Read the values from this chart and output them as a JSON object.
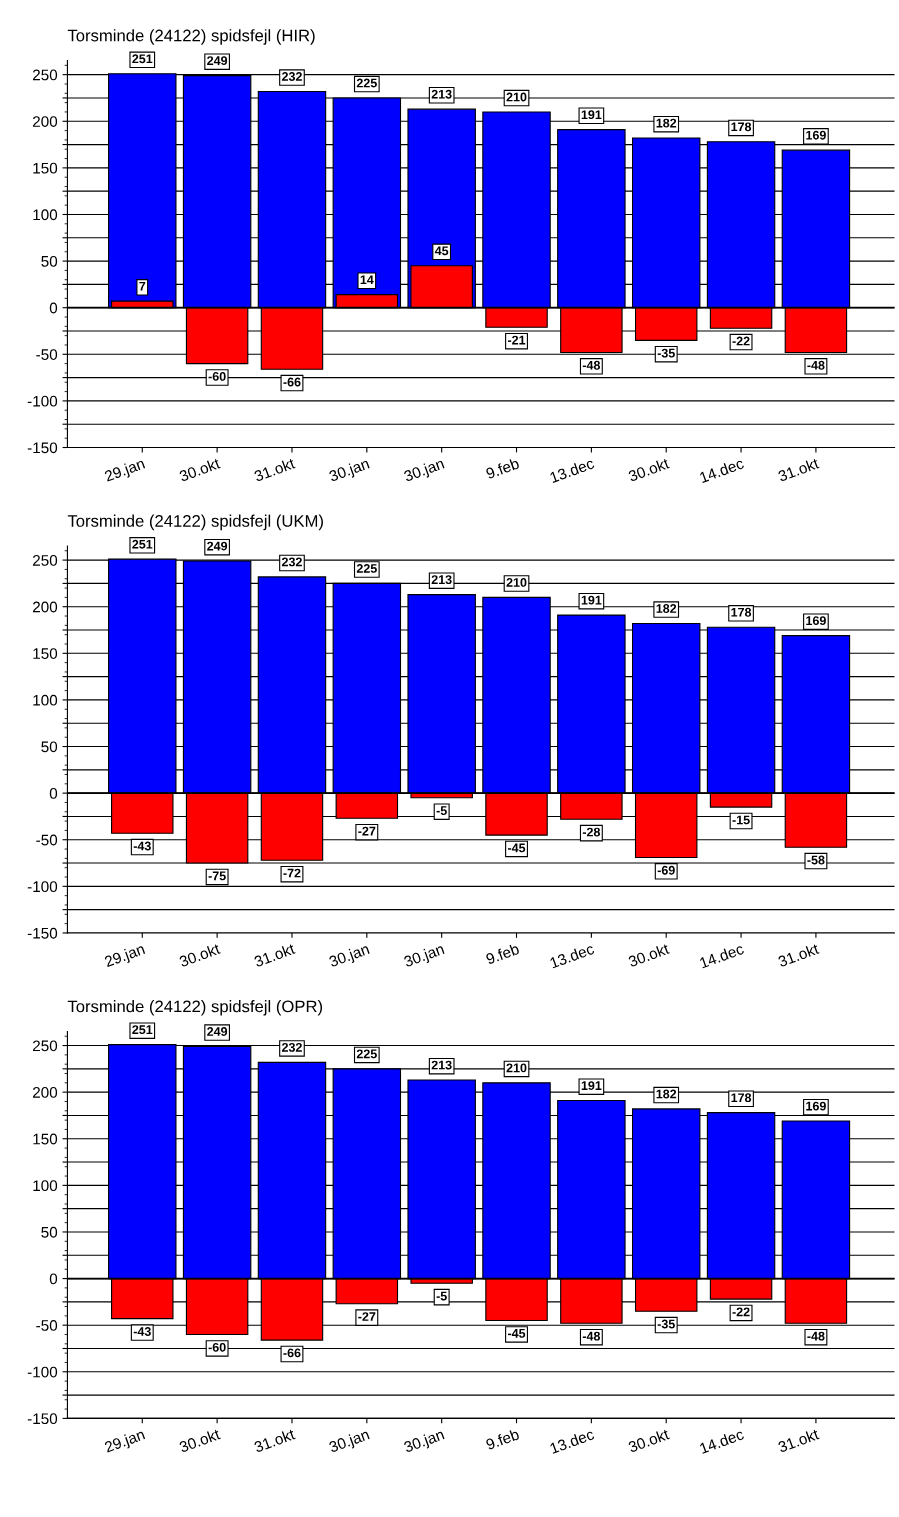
{
  "chart_data": [
    {
      "type": "bar",
      "title": "Torsminde (24122) spidsfejl (HIR)",
      "categories": [
        "29.jan",
        "30.okt",
        "31.okt",
        "30.jan",
        "30.jan",
        "9.feb",
        "13.dec",
        "30.okt",
        "14.dec",
        "31.okt"
      ],
      "series": [
        {
          "color": "#0000ff",
          "values": [
            251,
            249,
            232,
            225,
            213,
            210,
            191,
            182,
            178,
            169
          ]
        },
        {
          "color": "#ff0000",
          "values": [
            7,
            -60,
            -66,
            14,
            45,
            -21,
            -48,
            -35,
            -22,
            -48
          ]
        }
      ],
      "ylim": [
        -150,
        265
      ],
      "yticks": [
        -150,
        {
          "value": -125,
          "label": null
        },
        -100,
        {
          "value": -75,
          "label": null
        },
        -50,
        {
          "value": -25,
          "label": null
        },
        0,
        {
          "value": 25,
          "label": null
        },
        50,
        {
          "value": 75,
          "label": null
        },
        100,
        {
          "value": 125,
          "label": null
        },
        150,
        {
          "value": 175,
          "label": null
        },
        200,
        {
          "value": 225,
          "label": null
        },
        250
      ],
      "grid": "y",
      "data_labels": true,
      "legend": false
    },
    {
      "type": "bar",
      "title": "Torsminde (24122) spidsfejl (UKM)",
      "categories": [
        "29.jan",
        "30.okt",
        "31.okt",
        "30.jan",
        "30.jan",
        "9.feb",
        "13.dec",
        "30.okt",
        "14.dec",
        "31.okt"
      ],
      "series": [
        {
          "color": "#0000ff",
          "values": [
            251,
            249,
            232,
            225,
            213,
            210,
            191,
            182,
            178,
            169
          ]
        },
        {
          "color": "#ff0000",
          "values": [
            -43,
            -75,
            -72,
            -27,
            -5,
            -45,
            -28,
            -69,
            -15,
            -58
          ]
        }
      ],
      "ylim": [
        -150,
        265
      ],
      "yticks": [
        -150,
        {
          "value": -125,
          "label": null
        },
        -100,
        {
          "value": -75,
          "label": null
        },
        -50,
        {
          "value": -25,
          "label": null
        },
        0,
        {
          "value": 25,
          "label": null
        },
        50,
        {
          "value": 75,
          "label": null
        },
        100,
        {
          "value": 125,
          "label": null
        },
        150,
        {
          "value": 175,
          "label": null
        },
        200,
        {
          "value": 225,
          "label": null
        },
        250
      ],
      "grid": "y",
      "data_labels": true,
      "legend": false
    },
    {
      "type": "bar",
      "title": "Torsminde (24122) spidsfejl (OPR)",
      "categories": [
        "29.jan",
        "30.okt",
        "31.okt",
        "30.jan",
        "30.jan",
        "9.feb",
        "13.dec",
        "30.okt",
        "14.dec",
        "31.okt"
      ],
      "series": [
        {
          "color": "#0000ff",
          "values": [
            251,
            249,
            232,
            225,
            213,
            210,
            191,
            182,
            178,
            169
          ]
        },
        {
          "color": "#ff0000",
          "values": [
            -43,
            -60,
            -66,
            -27,
            -5,
            -45,
            -48,
            -35,
            -22,
            -48
          ]
        }
      ],
      "ylim": [
        -150,
        265
      ],
      "yticks": [
        -150,
        {
          "value": -125,
          "label": null
        },
        -100,
        {
          "value": -75,
          "label": null
        },
        -50,
        {
          "value": -25,
          "label": null
        },
        0,
        {
          "value": 25,
          "label": null
        },
        50,
        {
          "value": 75,
          "label": null
        },
        100,
        {
          "value": 125,
          "label": null
        },
        150,
        {
          "value": 175,
          "label": null
        },
        200,
        {
          "value": 225,
          "label": null
        },
        250
      ],
      "grid": "y",
      "data_labels": true,
      "legend": false
    }
  ]
}
